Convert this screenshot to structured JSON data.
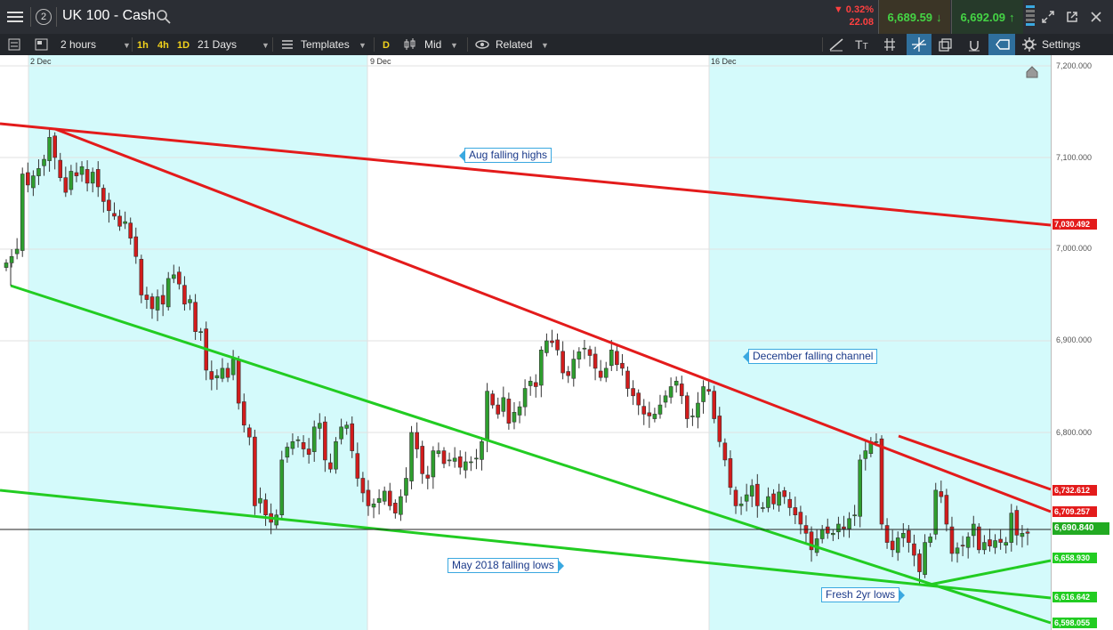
{
  "header": {
    "menu_icon": "hamburger-menu-icon",
    "badge": "2",
    "title": "UK 100 - Cash",
    "change_pct": "0.32%",
    "change_pts": "22.08",
    "sell_price": "6,689.59",
    "buy_price": "6,692.09"
  },
  "toolbar": {
    "interval": "2 hours",
    "quick_1h": "1h",
    "quick_4h": "4h",
    "quick_1d": "1D",
    "range": "21 Days",
    "templates": "Templates",
    "d_chip": "D",
    "price_type": "Mid",
    "related": "Related",
    "settings": "Settings"
  },
  "colors": {
    "shade": "#d4fafb",
    "red": "#e31b1b",
    "green": "#22cc22",
    "candle_up": "#2e9e2e",
    "candle_down": "#d21c1c"
  },
  "chart_data": {
    "type": "candlestick",
    "instrument": "UK 100 - Cash",
    "x_labels": [
      "2 Dec",
      "9 Dec",
      "16 Dec"
    ],
    "y_ticks": [
      "7,200.000",
      "7,100.000",
      "7,000.000",
      "6,900.000",
      "6,800.000"
    ],
    "ylim": [
      6588,
      7205
    ],
    "current_price": "6,690.840",
    "price_labels": [
      {
        "text": "7,030.492",
        "color": "#e31b1b"
      },
      {
        "text": "6,732.612",
        "color": "#e31b1b"
      },
      {
        "text": "6,709.257",
        "color": "#e31b1b"
      },
      {
        "text": "6,690.840",
        "color": "#22aa22"
      },
      {
        "text": "6,658.930",
        "color": "#22cc22"
      },
      {
        "text": "6,616.642",
        "color": "#22cc22"
      },
      {
        "text": "6,598.055",
        "color": "#22cc22"
      }
    ],
    "annotations": [
      "Aug falling highs",
      "December falling channel",
      "May 2018 falling lows",
      "Fresh 2yr lows"
    ],
    "closes": [
      6985,
      6992,
      7000,
      7082,
      7070,
      7080,
      7088,
      7098,
      7122,
      7100,
      7078,
      7062,
      7085,
      7080,
      7090,
      7072,
      7084,
      7068,
      7052,
      7042,
      7036,
      7025,
      7030,
      7012,
      6992,
      6950,
      6945,
      6935,
      6948,
      6940,
      6968,
      6972,
      6962,
      6940,
      6945,
      6910,
      6910,
      6868,
      6858,
      6862,
      6870,
      6860,
      6880,
      6832,
      6808,
      6795,
      6720,
      6728,
      6710,
      6702,
      6710,
      6770,
      6784,
      6790,
      6792,
      6782,
      6776,
      6806,
      6810,
      6770,
      6760,
      6790,
      6806,
      6808,
      6780,
      6750,
      6734,
      6720,
      6722,
      6728,
      6736,
      6720,
      6712,
      6730,
      6750,
      6800,
      6782,
      6755,
      6750,
      6780,
      6780,
      6766,
      6770,
      6772,
      6762,
      6768,
      6768,
      6772,
      6790,
      6845,
      6830,
      6820,
      6838,
      6810,
      6822,
      6828,
      6848,
      6856,
      6850,
      6890,
      6900,
      6898,
      6890,
      6865,
      6862,
      6880,
      6888,
      6892,
      6884,
      6870,
      6860,
      6870,
      6890,
      6874,
      6870,
      6848,
      6840,
      6830,
      6820,
      6818,
      6820,
      6830,
      6840,
      6850,
      6856,
      6840,
      6815,
      6818,
      6832,
      6850,
      6845,
      6815,
      6790,
      6770,
      6740,
      6720,
      6722,
      6732,
      6742,
      6720,
      6718,
      6730,
      6722,
      6735,
      6730,
      6718,
      6710,
      6700,
      6690,
      6672,
      6684,
      6694,
      6690,
      6690,
      6700,
      6695,
      6706,
      6710,
      6770,
      6780,
      6790,
      6790,
      6700,
      6680,
      6672,
      6685,
      6690,
      6680,
      6666,
      6648,
      6680,
      6686,
      6737,
      6730,
      6700,
      6668,
      6674,
      6676,
      6686,
      6700,
      6672,
      6680,
      6676,
      6682,
      6680,
      6680,
      6712,
      6688,
      6690,
      6690
    ]
  }
}
